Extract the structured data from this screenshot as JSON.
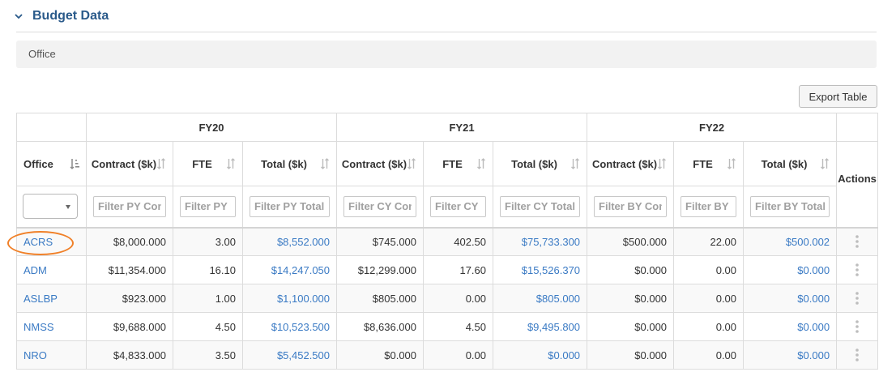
{
  "section": {
    "title": "Budget Data"
  },
  "filters": {
    "office_label": "Office"
  },
  "toolbar": {
    "export_label": "Export Table"
  },
  "table": {
    "groups": [
      "FY20",
      "FY21",
      "FY22"
    ],
    "office_header": "Office",
    "actions_header": "Actions",
    "col_contract": "Contract ($k)",
    "col_fte": "FTE",
    "col_total": "Total ($k)",
    "filter_placeholders": [
      "Filter PY Contract",
      "Filter PY FTE",
      "Filter PY Total",
      "Filter CY Contract",
      "Filter CY FTE",
      "Filter CY Total",
      "Filter BY Contract",
      "Filter BY FTE",
      "Filter BY Total"
    ],
    "rows": [
      {
        "office": "ACRS",
        "cells": [
          "$8,000.000",
          "3.00",
          "$8,552.000",
          "$745.000",
          "402.50",
          "$75,733.300",
          "$500.000",
          "22.00",
          "$500.002"
        ]
      },
      {
        "office": "ADM",
        "cells": [
          "$11,354.000",
          "16.10",
          "$14,247.050",
          "$12,299.000",
          "17.60",
          "$15,526.370",
          "$0.000",
          "0.00",
          "$0.000"
        ]
      },
      {
        "office": "ASLBP",
        "cells": [
          "$923.000",
          "1.00",
          "$1,100.000",
          "$805.000",
          "0.00",
          "$805.000",
          "$0.000",
          "0.00",
          "$0.000"
        ]
      },
      {
        "office": "NMSS",
        "cells": [
          "$9,688.000",
          "4.50",
          "$10,523.500",
          "$8,636.000",
          "4.50",
          "$9,495.800",
          "$0.000",
          "0.00",
          "$0.000"
        ]
      },
      {
        "office": "NRO",
        "cells": [
          "$4,833.000",
          "3.50",
          "$5,452.500",
          "$0.000",
          "0.00",
          "$0.000",
          "$0.000",
          "0.00",
          "$0.000"
        ]
      }
    ]
  },
  "colors": {
    "accent": "#2a5a8a",
    "link": "#3a7ac4",
    "highlight": "#f08028"
  }
}
